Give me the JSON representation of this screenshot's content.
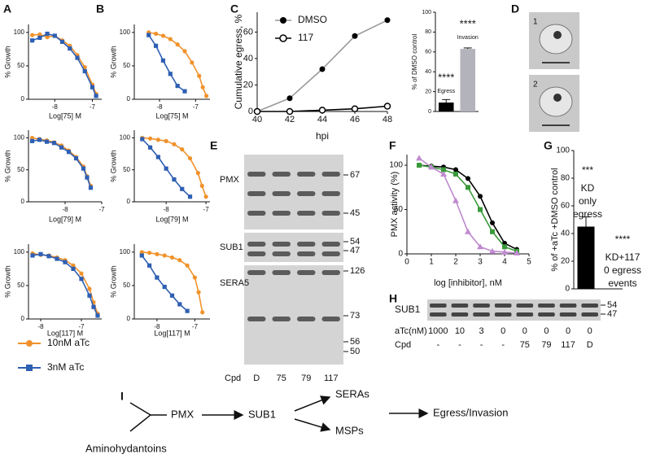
{
  "panel_labels": [
    "A",
    "B",
    "C",
    "D",
    "E",
    "F",
    "G",
    "H",
    "I"
  ],
  "legend": [
    {
      "name": "10nM aTc",
      "color": "#f0922b",
      "marker": "circle"
    },
    {
      "name": "3nM aTc",
      "color": "#2f5fb3",
      "marker": "square"
    }
  ],
  "chart_data": [
    {
      "type": "line",
      "x_label": "Log[75] M",
      "y_label": "% Growth",
      "x": [
        -8.6,
        -8.4,
        -8.2,
        -8.0,
        -7.8,
        -7.6,
        -7.4,
        -7.2,
        -7.0,
        -6.9
      ],
      "series": [
        {
          "color": "#f0922b",
          "marker": "circle",
          "values": [
            96,
            97,
            93,
            95,
            88,
            80,
            66,
            48,
            22,
            8
          ]
        },
        {
          "color": "#2f5fb3",
          "marker": "square",
          "values": [
            88,
            92,
            98,
            95,
            86,
            76,
            62,
            42,
            18,
            5
          ]
        }
      ],
      "xlim": [
        -8.7,
        -6.75
      ],
      "ylim": [
        0,
        112
      ],
      "xticks": [
        -8,
        -7
      ],
      "yticks": [
        0,
        50,
        100
      ]
    },
    {
      "type": "line",
      "x_label": "Log[79] M",
      "y_label": "% Growth",
      "x": [
        -8.9,
        -8.7,
        -8.5,
        -8.3,
        -8.1,
        -7.9,
        -7.7,
        -7.5,
        -7.4,
        -7.3
      ],
      "series": [
        {
          "color": "#f0922b",
          "marker": "circle",
          "values": [
            100,
            98,
            96,
            93,
            88,
            80,
            70,
            55,
            40,
            25
          ]
        },
        {
          "color": "#2f5fb3",
          "marker": "square",
          "values": [
            95,
            97,
            94,
            92,
            85,
            78,
            68,
            52,
            38,
            22
          ]
        }
      ],
      "xlim": [
        -9,
        -7.0
      ],
      "ylim": [
        0,
        112
      ],
      "xticks": [
        -8,
        -7
      ],
      "yticks": [
        0,
        50,
        100
      ]
    },
    {
      "type": "line",
      "x_label": "Log[117] M",
      "y_label": "% Growth",
      "x": [
        -8.2,
        -8.0,
        -7.8,
        -7.6,
        -7.4,
        -7.2,
        -7.0,
        -6.8,
        -6.7,
        -6.6
      ],
      "series": [
        {
          "color": "#f0922b",
          "marker": "circle",
          "values": [
            98,
            96,
            95,
            92,
            88,
            80,
            68,
            45,
            25,
            8
          ]
        },
        {
          "color": "#2f5fb3",
          "marker": "square",
          "values": [
            95,
            97,
            94,
            90,
            85,
            75,
            60,
            35,
            18,
            5
          ]
        }
      ],
      "xlim": [
        -8.3,
        -6.5
      ],
      "ylim": [
        0,
        112
      ],
      "xticks": [
        -8,
        -7
      ],
      "yticks": [
        0,
        50,
        100
      ]
    },
    {
      "type": "line",
      "x_label": "Log[75] M",
      "y_label": "% Growth",
      "x": [
        -8.3,
        -8.1,
        -7.9,
        -7.7,
        -7.5,
        -7.3,
        -7.1,
        -6.9,
        -6.8,
        -6.7
      ],
      "series": [
        {
          "color": "#f0922b",
          "marker": "circle",
          "values": [
            100,
            98,
            95,
            90,
            82,
            72,
            55,
            35,
            18,
            5
          ]
        },
        {
          "color": "#2f5fb3",
          "marker": "square",
          "values": [
            96,
            80,
            58,
            38,
            20,
            12,
            null,
            null,
            null,
            null
          ]
        }
      ],
      "xlim": [
        -8.7,
        -6.6
      ],
      "ylim": [
        0,
        112
      ],
      "xticks": [
        -8,
        -7
      ],
      "yticks": [
        0,
        50,
        100
      ]
    },
    {
      "type": "line",
      "x_label": "Log[79] M",
      "y_label": "% Growth",
      "x": [
        -8.6,
        -8.4,
        -8.2,
        -8.0,
        -7.8,
        -7.6,
        -7.4,
        -7.2,
        -7.1,
        -7.0
      ],
      "series": [
        {
          "color": "#f0922b",
          "marker": "circle",
          "values": [
            100,
            99,
            97,
            95,
            90,
            82,
            68,
            45,
            25,
            8
          ]
        },
        {
          "color": "#2f5fb3",
          "marker": "square",
          "values": [
            98,
            85,
            70,
            52,
            35,
            20,
            8,
            null,
            null,
            null
          ]
        }
      ],
      "xlim": [
        -8.8,
        -6.9
      ],
      "ylim": [
        0,
        112
      ],
      "xticks": [
        -8,
        -7
      ],
      "yticks": [
        0,
        50,
        100
      ]
    },
    {
      "type": "line",
      "x_label": "Log[117] M",
      "y_label": "% Growth",
      "x": [
        -8.4,
        -8.2,
        -8.0,
        -7.8,
        -7.6,
        -7.4,
        -7.2,
        -7.0,
        -6.9,
        -6.8
      ],
      "series": [
        {
          "color": "#f0922b",
          "marker": "circle",
          "values": [
            100,
            99,
            97,
            95,
            92,
            88,
            80,
            62,
            40,
            10
          ]
        },
        {
          "color": "#2f5fb3",
          "marker": "square",
          "values": [
            95,
            80,
            62,
            48,
            35,
            22,
            12,
            null,
            null,
            null
          ]
        }
      ],
      "xlim": [
        -8.6,
        -6.6
      ],
      "ylim": [
        0,
        112
      ],
      "xticks": [
        -8,
        -7
      ],
      "yticks": [
        0,
        50,
        100
      ]
    },
    {
      "type": "line",
      "x_label": "hpi",
      "y_label": "Cumulative egress, %",
      "x": [
        40,
        42,
        44,
        46,
        48
      ],
      "series": [
        {
          "name": "DMSO",
          "color": "#000000",
          "line_color": "#999999",
          "marker": "circle",
          "values": [
            0,
            10,
            32,
            57,
            69
          ]
        },
        {
          "name": "117",
          "color": "#000000",
          "line_color": "#000000",
          "marker": "open-circle",
          "values": [
            0,
            0,
            1,
            2,
            4
          ]
        }
      ],
      "xlim": [
        40,
        48
      ],
      "ylim": [
        0,
        75
      ],
      "xticks": [
        40,
        42,
        44,
        46,
        48
      ],
      "yticks": [
        0,
        20,
        40,
        60
      ]
    },
    {
      "type": "bar",
      "y_label": "% of DMSO control",
      "categories": [
        "Egress",
        "Invasion"
      ],
      "values": [
        9,
        63
      ],
      "errors": [
        3,
        1
      ],
      "colors": [
        "#000000",
        "#b3b3bb"
      ],
      "annotations": [
        "****",
        "****"
      ],
      "ylim": [
        0,
        100
      ],
      "yticks": [
        0,
        20,
        40,
        60,
        80,
        100
      ]
    },
    {
      "type": "line",
      "x_label": "log [inhibitor], nM",
      "y_label": "PMX activity (%)",
      "x": [
        0.5,
        1,
        1.5,
        2,
        2.5,
        3,
        3.5,
        4,
        4.5
      ],
      "series": [
        {
          "color": "#000000",
          "marker": "circle",
          "values": [
            100,
            99,
            98,
            95,
            85,
            65,
            35,
            12,
            5
          ]
        },
        {
          "color": "#3a9a3a",
          "marker": "square",
          "values": [
            100,
            98,
            95,
            90,
            75,
            50,
            25,
            8,
            3
          ]
        },
        {
          "color": "#c08ad0",
          "marker": "triangle",
          "values": [
            108,
            98,
            90,
            60,
            25,
            8,
            3,
            2,
            1
          ]
        }
      ],
      "xlim": [
        0,
        5
      ],
      "ylim": [
        0,
        112
      ],
      "xticks": [
        0,
        1,
        2,
        3,
        4,
        5
      ],
      "yticks": [
        0,
        50,
        100
      ]
    },
    {
      "type": "bar",
      "y_label": "% of +aTc +DMSO control",
      "categories": [
        null,
        null
      ],
      "values": [
        45,
        0
      ],
      "errors": [
        7,
        0
      ],
      "colors": [
        "#000000",
        "#000000"
      ],
      "annotations": [
        {
          "stars": "***",
          "lines": [
            "KD",
            "only",
            "egress"
          ]
        },
        {
          "stars": "****",
          "lines": [
            "KD+117",
            "0 egress",
            "events"
          ]
        }
      ],
      "ylim": [
        0,
        100
      ],
      "yticks": [
        0,
        20,
        40,
        60,
        80,
        100
      ]
    }
  ],
  "image_labels": [
    "1",
    "2"
  ],
  "blot_e": {
    "proteins": [
      "PMX",
      "SUB1",
      "SERA5"
    ],
    "markers": [
      67,
      45,
      54,
      47,
      126,
      73,
      56,
      50
    ],
    "cpd_label": "Cpd",
    "lanes": [
      "D",
      "75",
      "79",
      "117"
    ]
  },
  "blot_h": {
    "protein": "SUB1",
    "markers": [
      54,
      47
    ],
    "row_labels": [
      "aTc(nM)",
      "Cpd"
    ],
    "atc": [
      "1000",
      "10",
      "3",
      "0",
      "0",
      "0",
      "0",
      "0"
    ],
    "cpd": [
      "-",
      "-",
      "-",
      "-",
      "75",
      "79",
      "117",
      "D"
    ]
  },
  "diagram": {
    "nodes": [
      "PMX",
      "SUB1",
      "SERAs",
      "MSPs",
      "Egress/Invasion",
      "Aminohydantoins"
    ]
  }
}
